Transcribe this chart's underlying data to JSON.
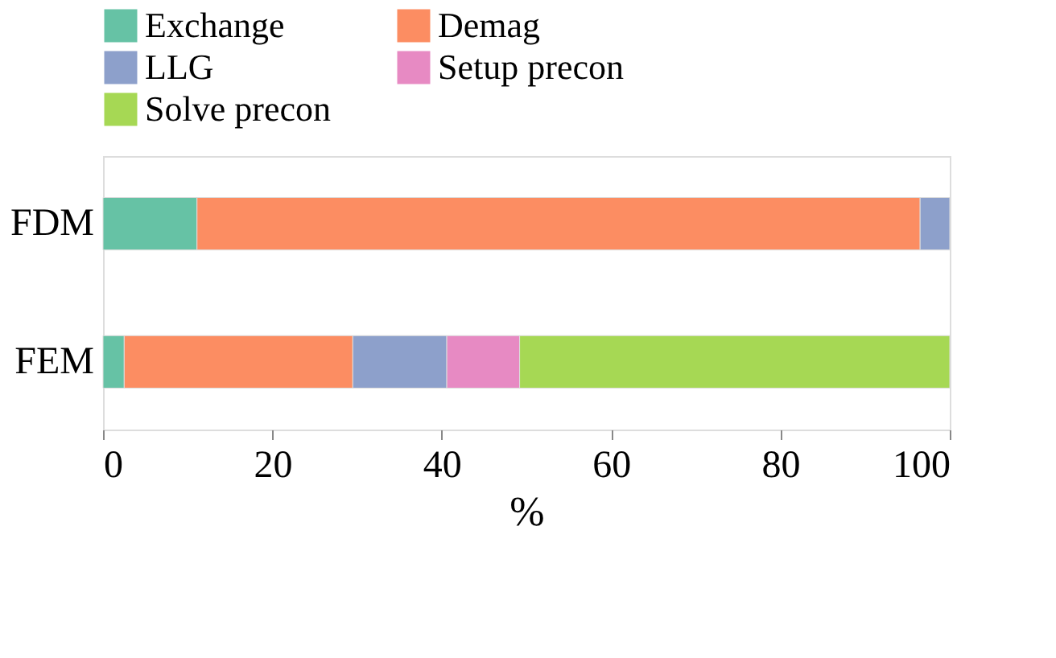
{
  "chart_data": {
    "type": "bar",
    "orientation": "horizontal",
    "stacked": true,
    "xlabel": "%",
    "categories": [
      "FDM",
      "FEM"
    ],
    "series": [
      {
        "name": "Exchange",
        "color": "#66c2a5",
        "values": [
          11.1,
          2.5
        ]
      },
      {
        "name": "Demag",
        "color": "#fc8d62",
        "values": [
          85.4,
          27.0
        ]
      },
      {
        "name": "LLG",
        "color": "#8da0cb",
        "values": [
          3.5,
          11.1
        ]
      },
      {
        "name": "Setup precon",
        "color": "#e78ac3",
        "values": [
          null,
          8.6
        ]
      },
      {
        "name": "Solve precon",
        "color": "#a6d854",
        "values": [
          null,
          50.8
        ]
      }
    ],
    "xlim": [
      0,
      100
    ],
    "xticks": [
      0,
      20,
      40,
      60,
      80,
      100
    ],
    "grid": false,
    "legend": "top"
  }
}
